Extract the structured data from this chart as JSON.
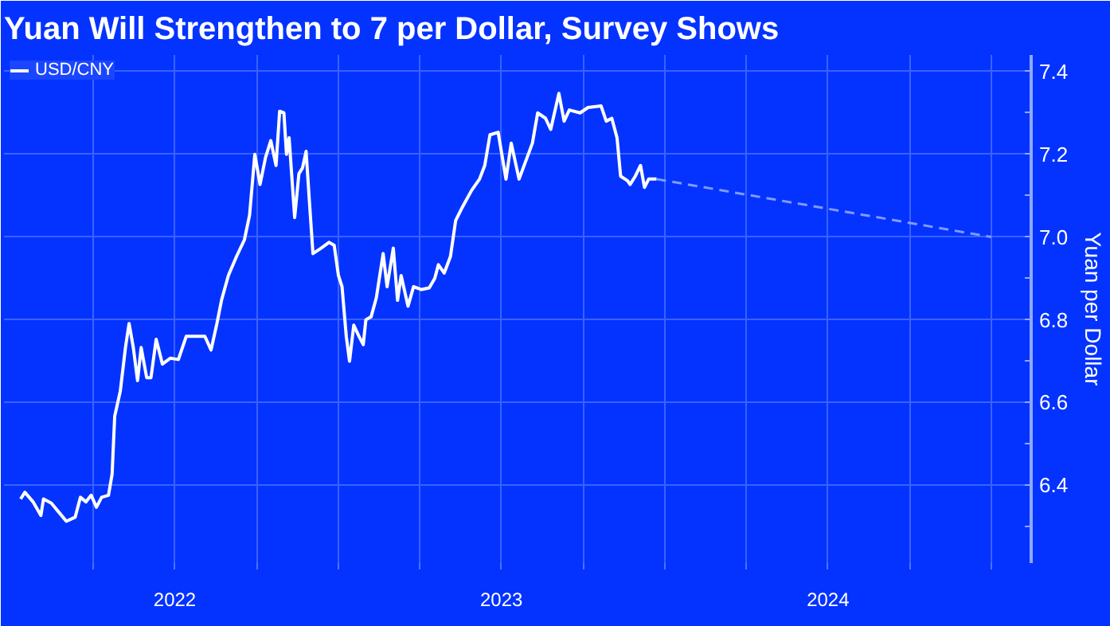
{
  "chart_data": {
    "type": "line",
    "title": "Yuan Will Strengthen to 7 per Dollar, Survey Shows",
    "ylabel": "Yuan per Dollar",
    "xlim": [
      2021.977,
      2025.122
    ],
    "ylim": [
      6.212,
      7.44
    ],
    "xticks": [
      {
        "value": 2022.25,
        "label": null
      },
      {
        "value": 2022.5,
        "label": "2022"
      },
      {
        "value": 2022.75,
        "label": null
      },
      {
        "value": 2023.0,
        "label": null
      },
      {
        "value": 2023.25,
        "label": null
      },
      {
        "value": 2023.5,
        "label": "2023"
      },
      {
        "value": 2023.75,
        "label": null
      },
      {
        "value": 2024.0,
        "label": null
      },
      {
        "value": 2024.25,
        "label": null
      },
      {
        "value": 2024.5,
        "label": "2024"
      },
      {
        "value": 2024.75,
        "label": null
      },
      {
        "value": 2025.0,
        "label": null
      }
    ],
    "yticks": [
      {
        "value": 6.3,
        "label": null
      },
      {
        "value": 6.4,
        "label": "6.4"
      },
      {
        "value": 6.5,
        "label": null
      },
      {
        "value": 6.6,
        "label": "6.6"
      },
      {
        "value": 6.7,
        "label": null
      },
      {
        "value": 6.8,
        "label": "6.8"
      },
      {
        "value": 6.9,
        "label": null
      },
      {
        "value": 7.0,
        "label": "7.0"
      },
      {
        "value": 7.1,
        "label": null
      },
      {
        "value": 7.2,
        "label": "7.2"
      },
      {
        "value": 7.3,
        "label": null
      },
      {
        "value": 7.4,
        "label": "7.4"
      }
    ],
    "grid": true,
    "legend": "top left",
    "series": [
      {
        "name": "USD/CNY",
        "color": "#ffffff",
        "line_style": "solid",
        "x": [
          2022.028,
          2022.041,
          2022.066,
          2022.09,
          2022.098,
          2022.122,
          2022.147,
          2022.168,
          2022.195,
          2022.211,
          2022.228,
          2022.244,
          2022.26,
          2022.276,
          2022.297,
          2022.308,
          2022.316,
          2022.333,
          2022.349,
          2022.36,
          2022.373,
          2022.386,
          2022.397,
          2022.414,
          2022.427,
          2022.443,
          2022.462,
          2022.486,
          2022.511,
          2022.535,
          2022.559,
          2022.592,
          2022.611,
          2022.629,
          2022.643,
          2022.664,
          2022.689,
          2022.713,
          2022.729,
          2022.745,
          2022.761,
          2022.778,
          2022.794,
          2022.81,
          2022.821,
          2022.834,
          2022.842,
          2022.85,
          2022.867,
          2022.88,
          2022.891,
          2022.902,
          2022.915,
          2022.923,
          2022.948,
          2022.972,
          2022.988,
          2023.001,
          2023.012,
          2023.025,
          2023.035,
          2023.048,
          2023.064,
          2023.077,
          2023.085,
          2023.101,
          2023.117,
          2023.138,
          2023.15,
          2023.169,
          2023.182,
          2023.193,
          2023.214,
          2023.231,
          2023.255,
          2023.279,
          2023.296,
          2023.307,
          2023.325,
          2023.344,
          2023.36,
          2023.381,
          2023.409,
          2023.433,
          2023.449,
          2023.465,
          2023.49,
          2023.514,
          2023.53,
          2023.554,
          2023.579,
          2023.595,
          2023.611,
          2023.635,
          2023.651,
          2023.676,
          2023.692,
          2023.708,
          2023.741,
          2023.765,
          2023.805,
          2023.821,
          2023.838,
          2023.854,
          2023.865,
          2023.886,
          2023.894,
          2023.91,
          2023.926,
          2023.938,
          2023.951,
          2023.975
        ],
        "values": [
          6.367,
          6.383,
          6.36,
          6.327,
          6.367,
          6.357,
          6.333,
          6.313,
          6.323,
          6.371,
          6.36,
          6.376,
          6.347,
          6.371,
          6.376,
          6.427,
          6.567,
          6.627,
          6.733,
          6.791,
          6.733,
          6.653,
          6.733,
          6.66,
          6.66,
          6.753,
          6.693,
          6.707,
          6.704,
          6.76,
          6.76,
          6.76,
          6.727,
          6.791,
          6.847,
          6.907,
          6.953,
          6.993,
          7.053,
          7.2,
          7.127,
          7.193,
          7.233,
          7.173,
          7.304,
          7.3,
          7.2,
          7.24,
          7.047,
          7.153,
          7.167,
          7.207,
          7.053,
          6.96,
          6.973,
          6.987,
          6.98,
          6.907,
          6.88,
          6.76,
          6.7,
          6.787,
          6.76,
          6.74,
          6.8,
          6.807,
          6.853,
          6.96,
          6.88,
          6.973,
          6.847,
          6.907,
          6.833,
          6.88,
          6.873,
          6.877,
          6.9,
          6.933,
          6.913,
          6.953,
          7.04,
          7.073,
          7.113,
          7.14,
          7.173,
          7.247,
          7.253,
          7.14,
          7.227,
          7.14,
          7.193,
          7.227,
          7.3,
          7.287,
          7.26,
          7.347,
          7.28,
          7.307,
          7.3,
          7.313,
          7.317,
          7.28,
          7.287,
          7.24,
          7.147,
          7.136,
          7.127,
          7.147,
          7.173,
          7.12,
          7.14,
          7.14
        ]
      },
      {
        "color": "#7f9cff",
        "line_style": "dashed",
        "x": [
          2023.975,
          2025.0
        ],
        "values": [
          7.14,
          7.0
        ]
      }
    ]
  }
}
